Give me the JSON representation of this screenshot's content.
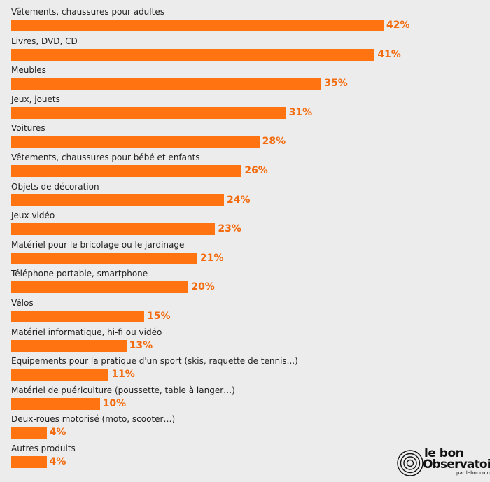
{
  "colors": {
    "bar": "#ff7311",
    "value_text": "#f26b0e",
    "background": "#ececec"
  },
  "chart_data": {
    "type": "bar",
    "orientation": "horizontal",
    "value_suffix": "%",
    "categories": [
      "Vêtements, chaussures pour adultes",
      "Livres, DVD, CD",
      "Meubles",
      "Jeux, jouets",
      "Voitures",
      "Vêtements, chaussures pour bébé et enfants",
      "Objets de décoration",
      "Jeux vidéo",
      "Matériel pour le bricolage ou le jardinage",
      "Téléphone portable, smartphone",
      "Vélos",
      "Matériel informatique, hi-fi ou vidéo",
      "Equipements pour la pratique d'un sport (skis, raquette de tennis...)",
      "Matériel de puériculture (poussette, table à langer…)",
      "Deux-roues motorisé (moto, scooter…)",
      "Autres produits"
    ],
    "values": [
      42,
      41,
      35,
      31,
      28,
      26,
      24,
      23,
      21,
      20,
      15,
      13,
      11,
      10,
      4,
      4
    ],
    "value_labels": [
      "42%",
      "41%",
      "35%",
      "31%",
      "28%",
      "26%",
      "24%",
      "23%",
      "21%",
      "20%",
      "15%",
      "13%",
      "11%",
      "10%",
      "4%",
      "4%"
    ],
    "xlim": [
      0,
      42
    ],
    "grid": false,
    "legend": "none"
  },
  "logo": {
    "line1": "le bon",
    "line2": "Observatoire",
    "line3": "par leboncoin",
    "icon": "concentric-circles-logo-icon"
  }
}
